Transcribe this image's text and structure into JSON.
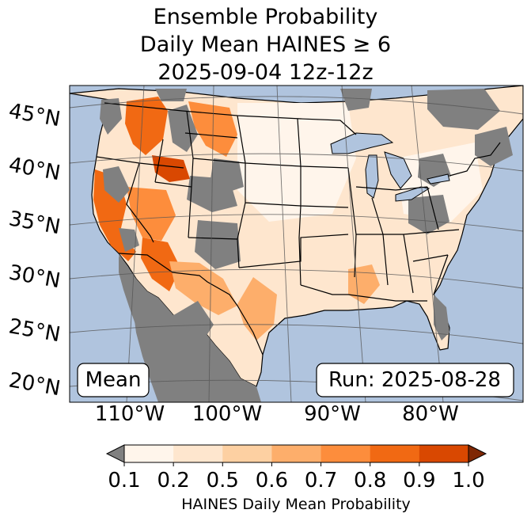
{
  "title": {
    "line1": "Ensemble Probability",
    "line2": "Daily Mean HAINES ≥ 6",
    "line3": "2025-09-04 12z-12z"
  },
  "map": {
    "lat_labels": [
      "45°N",
      "40°N",
      "35°N",
      "30°N",
      "25°N",
      "20°N"
    ],
    "lon_labels": [
      "110°W",
      "100°W",
      "90°W",
      "80°W"
    ],
    "stat_box": "Mean",
    "run_box": "Run: 2025-08-28",
    "colors": {
      "ocean": "#b0c4de",
      "no_data": "#808080",
      "land_low": "#fff5eb",
      "borders": "#000000",
      "graticule": "#555555"
    }
  },
  "colorbar": {
    "ticks": [
      "0.1",
      "0.2",
      "0.5",
      "0.6",
      "0.7",
      "0.8",
      "0.9",
      "1.0"
    ],
    "colors": [
      "#fff5eb",
      "#fee6ce",
      "#fdd0a2",
      "#fdae6b",
      "#fd8d3c",
      "#f16913",
      "#d94801",
      "#a63603"
    ],
    "under_color": "#808080",
    "over_color": "#7f2704",
    "label": "HAINES Daily Mean Probability"
  }
}
